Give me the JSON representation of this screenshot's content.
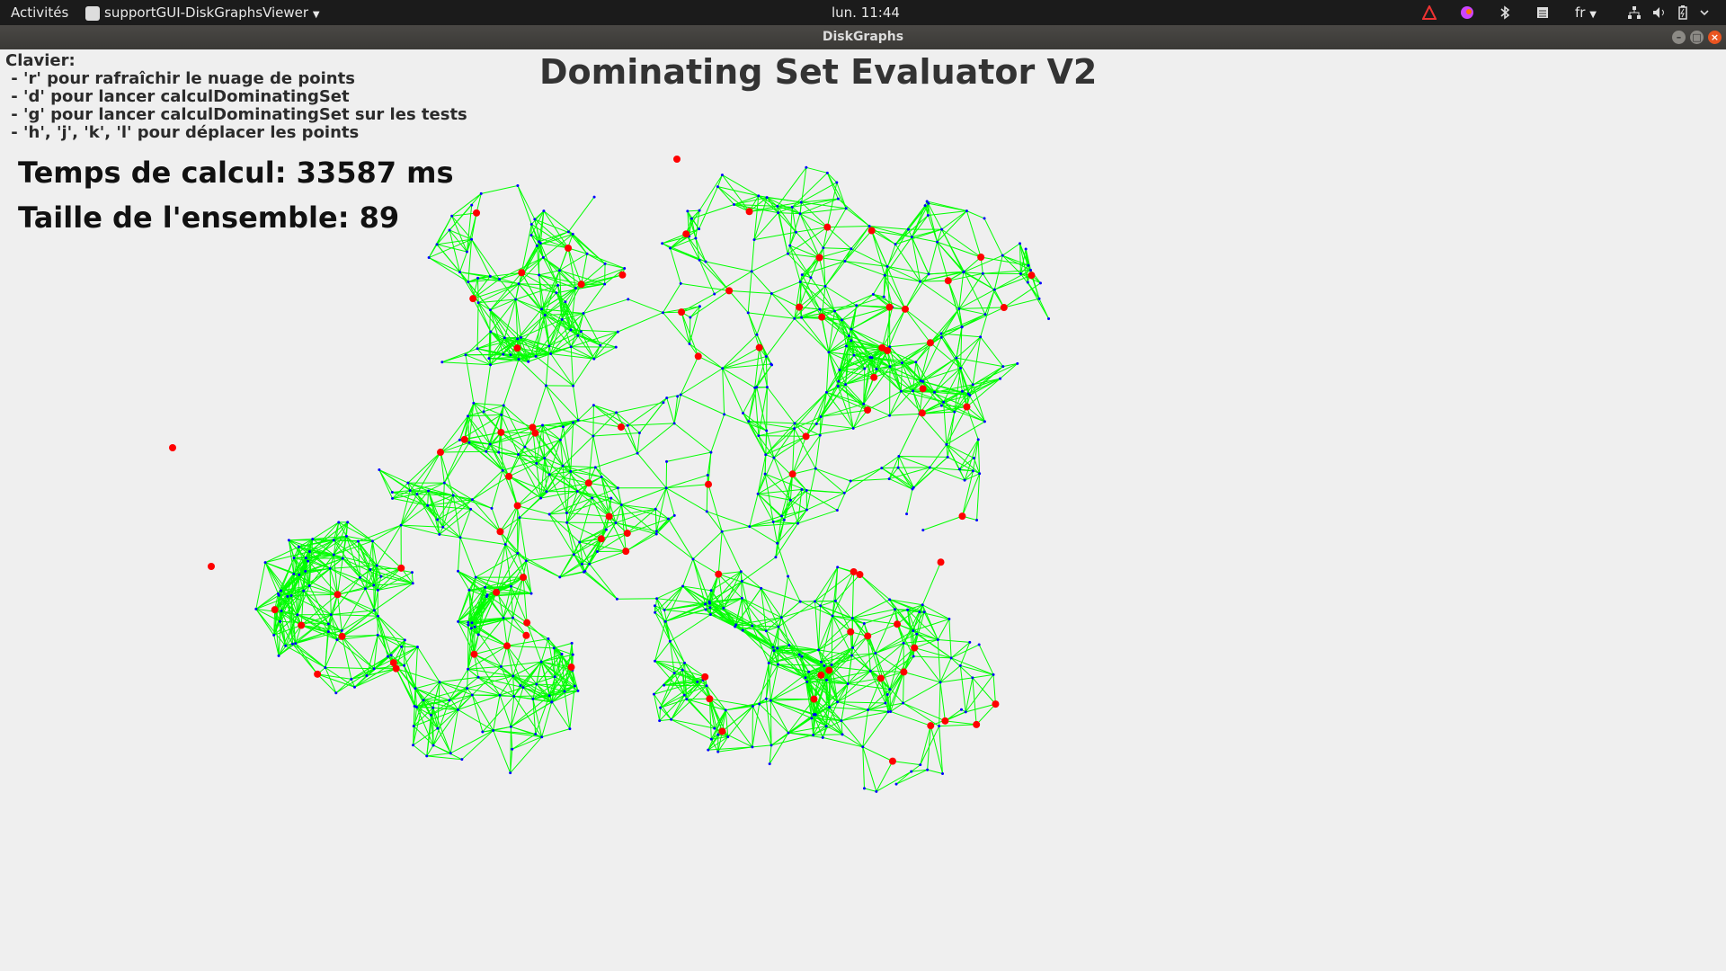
{
  "topbar": {
    "activities": "Activités",
    "app_menu": "supportGUI-DiskGraphsViewer",
    "clock": "lun. 11:44",
    "keyboard_layout": "fr",
    "tray_icons": [
      "warning-icon",
      "app-color-icon",
      "bluetooth-icon",
      "notes-icon",
      "keyboard-layout-icon",
      "network-icon",
      "volume-icon",
      "battery-icon",
      "power-menu-icon"
    ]
  },
  "window": {
    "title": "DiskGraphs",
    "controls": [
      "minimize",
      "maximize",
      "close"
    ]
  },
  "app": {
    "title": "Dominating Set Evaluator V2",
    "help_header": "Clavier:",
    "help_lines": [
      " - 'r' pour rafraîchir le nuage de points",
      " - 'd' pour lancer calculDominatingSet",
      " - 'g' pour lancer calculDominatingSet sur les tests",
      " - 'h', 'j', 'k', 'l' pour déplacer les points"
    ],
    "compute_time": "Temps de calcul: 33587 ms",
    "set_size": "Taille de l'ensemble: 89",
    "colors": {
      "edge": "#00ff00",
      "dominating_point": "#ff0000",
      "regular_point": "#0000ff",
      "background": "#efefef",
      "topbar": "#1b1b1b"
    }
  }
}
